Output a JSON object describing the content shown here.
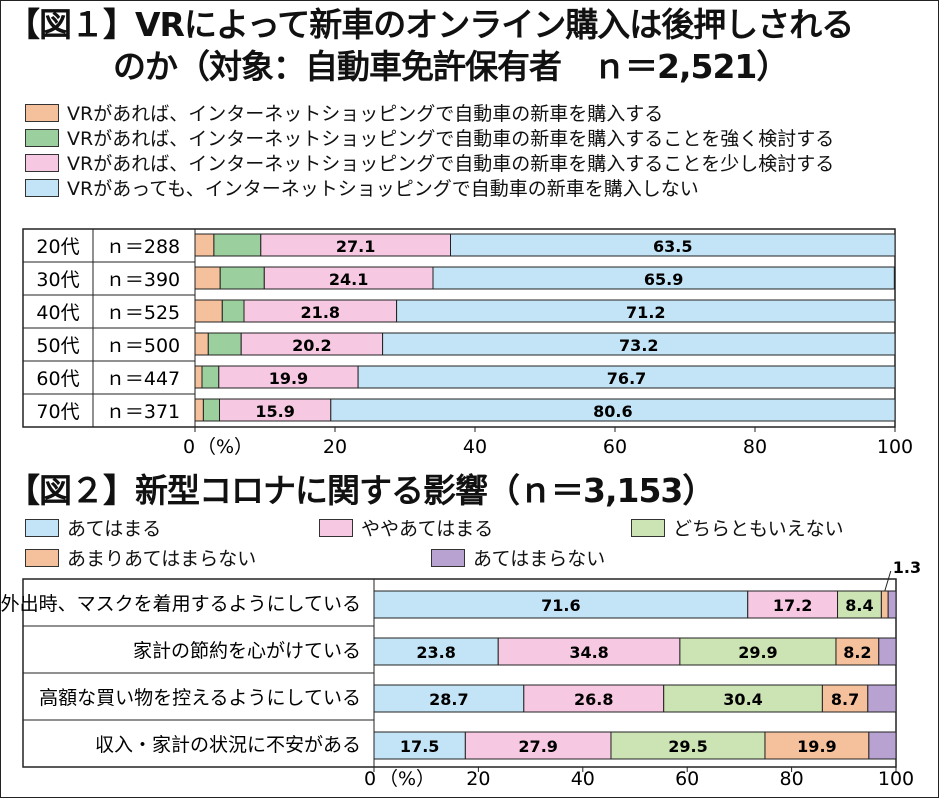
{
  "colors": {
    "c1": "#f5c09c",
    "c2": "#9ccf9e",
    "c3": "#f7c8e2",
    "c4": "#c2e4f6",
    "d1": "#c2e4f6",
    "d2": "#f7c8e2",
    "d3": "#cce3b4",
    "d4": "#f5c09c",
    "d5": "#b7a2d2"
  },
  "chart_data": [
    {
      "type": "bar",
      "orientation": "horizontal",
      "stacked": true,
      "title": "【図１】VRによって新車のオンライン購入は後押しされるのか（対象：自動車免許保有者　ｎ＝2,521）",
      "title_line1": "【図１】VRによって新車のオンライン購入は後押しされる",
      "title_line2": "のか（対象：自動車免許保有者　ｎ＝2,521）",
      "categories": [
        "20代",
        "30代",
        "40代",
        "50代",
        "60代",
        "70代"
      ],
      "n_labels": [
        "ｎ＝288",
        "ｎ＝390",
        "ｎ＝525",
        "ｎ＝500",
        "ｎ＝447",
        "ｎ＝371"
      ],
      "series": [
        {
          "name": "VRがあれば、インターネットショッピングで自動車の新車を購入する",
          "values": [
            2.7,
            3.6,
            3.9,
            1.9,
            1.0,
            1.2
          ],
          "labeled": false
        },
        {
          "name": "VRがあれば、インターネットショッピングで自動車の新車を購入することを強く検討する",
          "values": [
            6.7,
            6.3,
            3.1,
            4.7,
            2.4,
            2.3
          ],
          "labeled": false
        },
        {
          "name": "VRがあれば、インターネットショッピングで自動車の新車を購入することを少し検討する",
          "values": [
            27.1,
            24.1,
            21.8,
            20.2,
            19.9,
            15.9
          ],
          "labeled": true
        },
        {
          "name": "VRがあっても、インターネットショッピングで自動車の新車を購入しない",
          "values": [
            63.5,
            65.9,
            71.2,
            73.2,
            76.7,
            80.6
          ],
          "labeled": true
        }
      ],
      "xlim": [
        0,
        100
      ],
      "xticks": [
        "0",
        "20",
        "40",
        "60",
        "80",
        "100"
      ],
      "xunit": "（%）",
      "legend": "top"
    },
    {
      "type": "bar",
      "orientation": "horizontal",
      "stacked": true,
      "title": "【図２】新型コロナに関する影響（ｎ＝3,153）",
      "categories": [
        "外出時、マスクを着用するようにしている",
        "家計の節約を心がけている",
        "高額な買い物を控えるようにしている",
        "収入・家計の状況に不安がある"
      ],
      "series": [
        {
          "name": "あてはまる",
          "values": [
            71.6,
            23.8,
            28.7,
            17.5
          ],
          "labeled": true
        },
        {
          "name": "ややあてはまる",
          "values": [
            17.2,
            34.8,
            26.8,
            27.9
          ],
          "labeled": true
        },
        {
          "name": "どちらともいえない",
          "values": [
            8.4,
            29.9,
            30.4,
            29.5
          ],
          "labeled": true
        },
        {
          "name": "あまりあてはまらない",
          "values": [
            1.3,
            8.2,
            8.7,
            19.9
          ],
          "labeled": true
        },
        {
          "name": "あてはまらない",
          "values": [
            1.5,
            3.3,
            5.4,
            5.2
          ],
          "labeled": false
        }
      ],
      "xlim": [
        0,
        100
      ],
      "xticks": [
        "0",
        "20",
        "40",
        "60",
        "80",
        "100"
      ],
      "xunit": "（%）",
      "legend": "top"
    }
  ]
}
